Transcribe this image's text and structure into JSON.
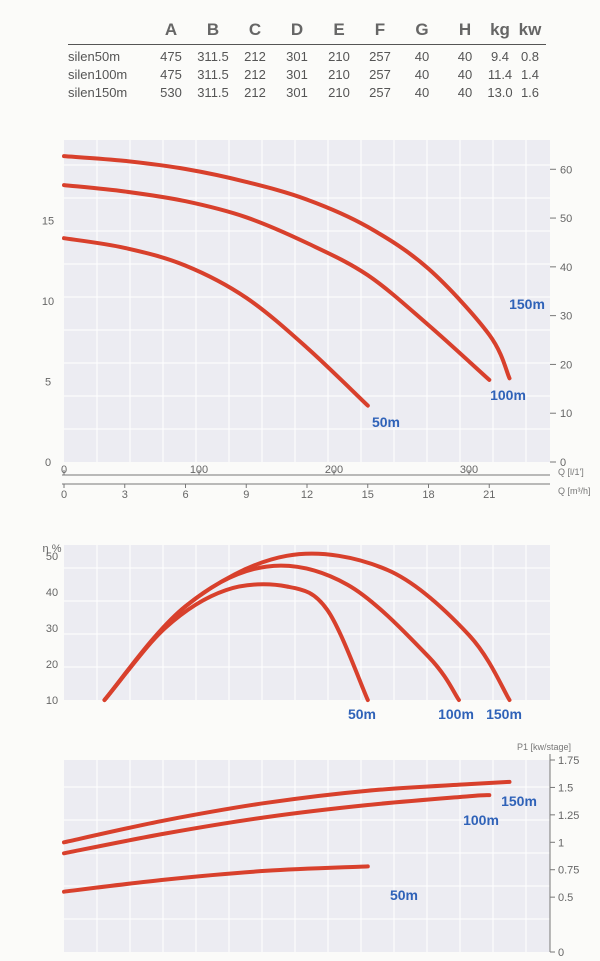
{
  "table": {
    "headers": [
      "A",
      "B",
      "C",
      "D",
      "E",
      "F",
      "G",
      "H",
      "kg",
      "kw"
    ],
    "rows": [
      {
        "model": "silen50m",
        "values": [
          "475",
          "311.5",
          "212",
          "301",
          "210",
          "257",
          "40",
          "40",
          "9.4",
          "0.8"
        ]
      },
      {
        "model": "silen100m",
        "values": [
          "475",
          "311.5",
          "212",
          "301",
          "210",
          "257",
          "40",
          "40",
          "11.4",
          "1.4"
        ]
      },
      {
        "model": "silen150m",
        "values": [
          "530",
          "311.5",
          "212",
          "301",
          "210",
          "257",
          "40",
          "40",
          "13.0",
          "1.6"
        ]
      }
    ]
  },
  "chart_data": [
    {
      "type": "line",
      "title": "",
      "ylim_left": [
        0,
        20
      ],
      "yticks_left": [
        "0",
        "5",
        "10",
        "15"
      ],
      "ylim_right": [
        0,
        66
      ],
      "yticks_right": [
        "0",
        "10",
        "20",
        "30",
        "40",
        "50",
        "60"
      ],
      "x_axes": [
        {
          "unit": "Q [l/1']",
          "range": [
            0,
            360
          ],
          "ticks": [
            "0",
            "100",
            "200",
            "300"
          ]
        },
        {
          "unit": "Q [m³/h]",
          "range": [
            0,
            24
          ],
          "ticks": [
            "0",
            "3",
            "6",
            "9",
            "12",
            "15",
            "18",
            "21"
          ]
        }
      ],
      "grid": true,
      "series": [
        {
          "name": "50m",
          "x": [
            0,
            3,
            6,
            9,
            12,
            15
          ],
          "y": [
            13.9,
            13.3,
            12.2,
            10.2,
            7.1,
            3.5
          ]
        },
        {
          "name": "100m",
          "x": [
            0,
            3,
            6,
            9,
            12,
            15,
            18,
            21
          ],
          "y": [
            17.2,
            16.8,
            16.2,
            15.2,
            13.6,
            11.6,
            8.5,
            5.1
          ]
        },
        {
          "name": "150m",
          "x": [
            0,
            3,
            6,
            9,
            12,
            15,
            18,
            21,
            22
          ],
          "y": [
            19.0,
            18.7,
            18.2,
            17.4,
            16.3,
            14.6,
            12.0,
            7.9,
            5.2
          ]
        }
      ],
      "line_color": "#d8402c",
      "label_color": "#2f62b8"
    },
    {
      "type": "line",
      "ylabel": "η %",
      "ylim": [
        10,
        53
      ],
      "yticks": [
        "10",
        "20",
        "30",
        "40",
        "50"
      ],
      "grid": true,
      "series": [
        {
          "name": "50m",
          "x": [
            2,
            5,
            8,
            11,
            13,
            15
          ],
          "y": [
            10,
            30,
            40.5,
            41.5,
            35,
            10
          ]
        },
        {
          "name": "100m",
          "x": [
            2,
            6,
            10,
            14,
            18,
            19.5
          ],
          "y": [
            10,
            36,
            47,
            42,
            22,
            10
          ]
        },
        {
          "name": "150m",
          "x": [
            2,
            6,
            11,
            16,
            20,
            22
          ],
          "y": [
            10,
            36,
            50,
            46,
            28,
            10
          ]
        }
      ],
      "line_color": "#d8402c",
      "label_color": "#2f62b8"
    },
    {
      "type": "line",
      "ylabel": "P1 [kw/stage]",
      "ylim": [
        0,
        1.75
      ],
      "yticks": [
        "0",
        "0.5",
        "0.75",
        "1",
        "1.25",
        "1.5",
        "1.75"
      ],
      "grid": true,
      "series": [
        {
          "name": "50m",
          "x": [
            0,
            5,
            10,
            15
          ],
          "y": [
            0.55,
            0.66,
            0.74,
            0.78
          ]
        },
        {
          "name": "100m",
          "x": [
            0,
            5,
            10,
            15,
            20,
            21
          ],
          "y": [
            0.9,
            1.08,
            1.23,
            1.34,
            1.42,
            1.43
          ]
        },
        {
          "name": "150m",
          "x": [
            0,
            5,
            10,
            15,
            20,
            22
          ],
          "y": [
            1,
            1.2,
            1.36,
            1.47,
            1.53,
            1.55
          ]
        }
      ],
      "line_color": "#d8402c",
      "label_color": "#2f62b8"
    }
  ]
}
